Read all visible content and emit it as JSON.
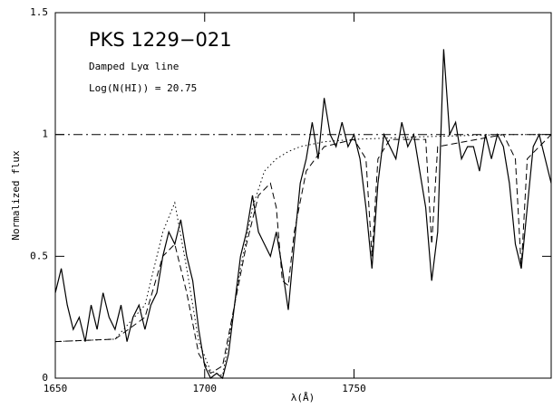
{
  "chart_data": {
    "type": "line",
    "title": "PKS 1229−021",
    "annotations": [
      "Damped Lyα line",
      "Log(N(HI)) = 20.75"
    ],
    "xlabel": "λ(Å)",
    "ylabel": "Normalized flux",
    "xlim": [
      1650,
      1816
    ],
    "ylim": [
      0,
      1.5
    ],
    "xticks": [
      1650,
      1700,
      1750
    ],
    "yticks": [
      0,
      0.5,
      1,
      1.5
    ],
    "series": [
      {
        "color": "#000",
        "style": "solid",
        "x": [
          1650,
          1652,
          1654,
          1656,
          1658,
          1660,
          1662,
          1664,
          1666,
          1668,
          1670,
          1672,
          1674,
          1676,
          1678,
          1680,
          1682,
          1684,
          1686,
          1688,
          1690,
          1692,
          1694,
          1696,
          1698,
          1700,
          1702,
          1704,
          1706,
          1708,
          1710,
          1712,
          1714,
          1716,
          1718,
          1720,
          1722,
          1724,
          1726,
          1728,
          1730,
          1732,
          1734,
          1736,
          1738,
          1740,
          1742,
          1744,
          1746,
          1748,
          1750,
          1752,
          1754,
          1756,
          1758,
          1760,
          1762,
          1764,
          1766,
          1768,
          1770,
          1772,
          1774,
          1776,
          1778,
          1780,
          1782,
          1784,
          1786,
          1788,
          1790,
          1792,
          1794,
          1796,
          1798,
          1800,
          1802,
          1804,
          1806,
          1808,
          1810,
          1812,
          1814,
          1816
        ],
        "values": [
          0.35,
          0.45,
          0.3,
          0.2,
          0.25,
          0.15,
          0.3,
          0.2,
          0.35,
          0.25,
          0.2,
          0.3,
          0.15,
          0.25,
          0.3,
          0.2,
          0.3,
          0.35,
          0.5,
          0.6,
          0.55,
          0.65,
          0.5,
          0.4,
          0.2,
          0.05,
          0.0,
          0.02,
          0.0,
          0.1,
          0.3,
          0.5,
          0.6,
          0.75,
          0.6,
          0.55,
          0.5,
          0.6,
          0.45,
          0.28,
          0.55,
          0.8,
          0.9,
          1.05,
          0.9,
          1.15,
          1.0,
          0.95,
          1.05,
          0.95,
          1.0,
          0.9,
          0.7,
          0.45,
          0.8,
          1.0,
          0.95,
          0.9,
          1.05,
          0.95,
          1.0,
          0.85,
          0.7,
          0.4,
          0.6,
          1.35,
          1.0,
          1.05,
          0.9,
          0.95,
          0.95,
          0.85,
          1.0,
          0.9,
          1.0,
          0.95,
          0.8,
          0.55,
          0.45,
          0.7,
          0.95,
          1.0,
          0.9,
          0.8
        ]
      },
      {
        "color": "#000",
        "style": "dashed",
        "x": [
          1650,
          1670,
          1680,
          1686,
          1690,
          1694,
          1698,
          1702,
          1706,
          1710,
          1714,
          1718,
          1722,
          1724,
          1726,
          1728,
          1730,
          1734,
          1740,
          1750,
          1754,
          1756,
          1758,
          1762,
          1774,
          1776,
          1778,
          1800,
          1804,
          1806,
          1808,
          1816
        ],
        "values": [
          0.15,
          0.16,
          0.25,
          0.5,
          0.55,
          0.35,
          0.1,
          0.02,
          0.05,
          0.3,
          0.55,
          0.75,
          0.8,
          0.7,
          0.4,
          0.38,
          0.6,
          0.85,
          0.95,
          0.98,
          0.9,
          0.5,
          0.9,
          0.98,
          0.98,
          0.55,
          0.95,
          1.0,
          0.9,
          0.45,
          0.9,
          1.0
        ]
      },
      {
        "color": "#000",
        "style": "dotted",
        "x": [
          1650,
          1670,
          1680,
          1686,
          1690,
          1694,
          1698,
          1702,
          1706,
          1708,
          1712,
          1716,
          1720,
          1724,
          1728,
          1732,
          1740,
          1750,
          1770,
          1800,
          1816
        ],
        "values": [
          0.15,
          0.16,
          0.3,
          0.6,
          0.72,
          0.45,
          0.15,
          0.03,
          0.01,
          0.15,
          0.45,
          0.7,
          0.85,
          0.9,
          0.93,
          0.95,
          0.97,
          0.98,
          0.99,
          1.0,
          1.0
        ]
      },
      {
        "color": "#000",
        "style": "dashdot",
        "x": [
          1650,
          1816
        ],
        "values": [
          1.0,
          1.0
        ]
      }
    ]
  }
}
